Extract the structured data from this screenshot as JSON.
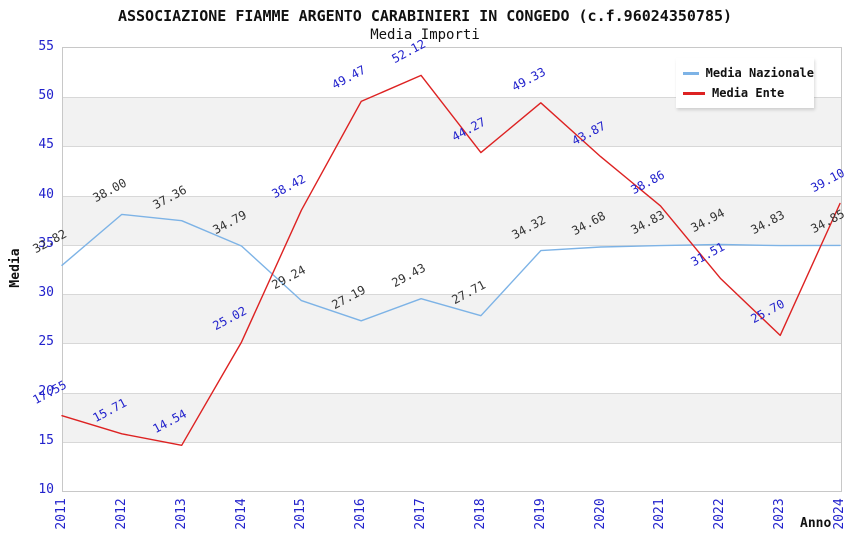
{
  "chart_data": {
    "type": "line",
    "title": "ASSOCIAZIONE FIAMME ARGENTO CARABINIERI IN CONGEDO (c.f.96024350785)",
    "subtitle": "Media Importi",
    "xlabel": "Anno",
    "ylabel": "Media",
    "x": [
      "2011",
      "2012",
      "2013",
      "2014",
      "2015",
      "2016",
      "2017",
      "2018",
      "2019",
      "2020",
      "2021",
      "2022",
      "2023",
      "2024"
    ],
    "series": [
      {
        "name": "Media Nazionale",
        "color": "#7db3e6",
        "label_color": "#333333",
        "values": [
          32.82,
          38.0,
          37.36,
          34.79,
          29.24,
          27.19,
          29.43,
          27.71,
          34.32,
          34.68,
          34.83,
          34.94,
          34.83,
          34.85
        ]
      },
      {
        "name": "Media Ente",
        "color": "#dd2222",
        "label_color": "#2222cc",
        "values": [
          17.55,
          15.71,
          14.54,
          25.02,
          38.42,
          49.47,
          52.12,
          44.27,
          49.33,
          43.87,
          38.86,
          31.51,
          25.7,
          39.1
        ]
      }
    ],
    "ylim": [
      10,
      55
    ],
    "ytick_step": 5,
    "yticks": [
      10,
      15,
      20,
      25,
      30,
      35,
      40,
      45,
      50,
      55
    ],
    "tick_color": "#2222cc",
    "band_colors": [
      "#ffffff",
      "#f2f2f2"
    ],
    "grid_color": "#d8d8d8",
    "border_color": "#c8c8c8",
    "legend_position": "top-right",
    "grid": "horizontal-bands",
    "value_labels_decimals": 2
  }
}
